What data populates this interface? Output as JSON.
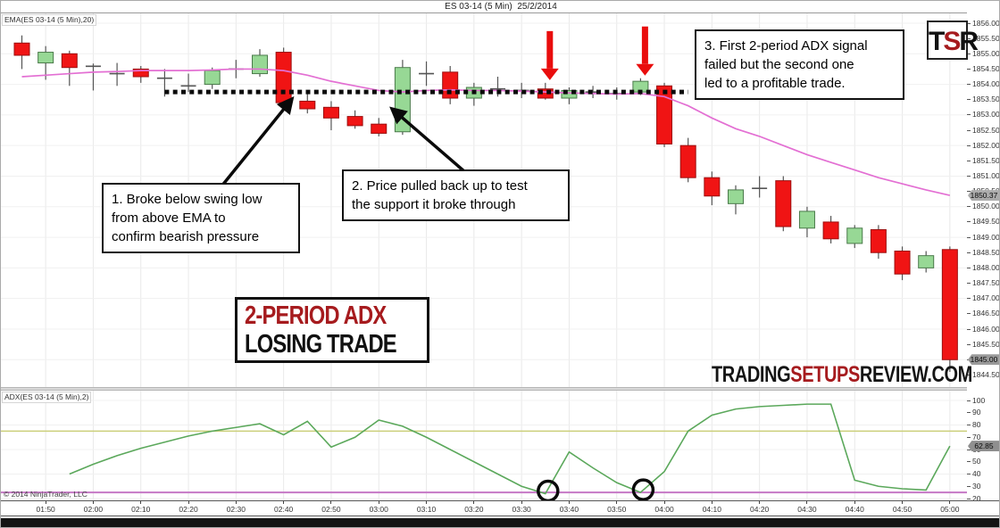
{
  "title": "ES 03-14 (5 Min)  25/2/2014",
  "copyright": "© 2014 NinjaTrader, LLC",
  "logo": {
    "t": "T",
    "s": "S",
    "r": "R"
  },
  "watermark": {
    "left": "TRADING",
    "mid": "SETUPS",
    "right": "REVIEW.COM"
  },
  "callout": {
    "line1": "2-PERIOD ADX",
    "line2": "LOSING TRADE"
  },
  "annotations": [
    {
      "text": "1. Broke below swing low\nfrom above EMA to\nconfirm bearish pressure"
    },
    {
      "text": "2. Price pulled  back up to test\nthe support it broke through"
    },
    {
      "text": "3. First 2-period ADX signal\nfailed but the second one\nled to a profitable trade."
    }
  ],
  "main_panel": {
    "indicator_label": "EMA(ES 03-14 (5 Min),20)",
    "ema_value_tag": "1850.37",
    "last_price_tag": "1845.00",
    "price_ticks": [
      "1856.00",
      "1855.50",
      "1855.00",
      "1854.50",
      "1854.00",
      "1853.50",
      "1853.00",
      "1852.50",
      "1852.00",
      "1851.50",
      "1851.00",
      "1850.50",
      "1850.00",
      "1849.50",
      "1849.00",
      "1848.50",
      "1848.00",
      "1847.50",
      "1847.00",
      "1846.50",
      "1846.00",
      "1845.50",
      "1845.00",
      "1844.50"
    ]
  },
  "adx_panel": {
    "indicator_label": "ADX(ES 03-14 (5 Min),2)",
    "value_tag": "62.85",
    "ticks": [
      "100",
      "90",
      "80",
      "70",
      "60",
      "50",
      "40",
      "30",
      "20"
    ]
  },
  "time_axis": [
    "01:50",
    "02:00",
    "02:10",
    "02:20",
    "02:30",
    "02:40",
    "02:50",
    "03:00",
    "03:10",
    "03:20",
    "03:30",
    "03:40",
    "03:50",
    "04:00",
    "04:10",
    "04:20",
    "04:30",
    "04:40",
    "04:50",
    "05:00"
  ],
  "chart_data": [
    {
      "type": "candlestick",
      "title": "ES 03-14 (5 Min)  25/2/2014",
      "x_times": [
        "01:45",
        "01:50",
        "01:55",
        "02:00",
        "02:05",
        "02:10",
        "02:15",
        "02:20",
        "02:25",
        "02:30",
        "02:35",
        "02:40",
        "02:45",
        "02:50",
        "02:55",
        "03:00",
        "03:05",
        "03:10",
        "03:15",
        "03:20",
        "03:25",
        "03:30",
        "03:35",
        "03:40",
        "03:45",
        "03:50",
        "03:55",
        "04:00",
        "04:05",
        "04:10",
        "04:15",
        "04:20",
        "04:25",
        "04:30",
        "04:35",
        "04:40",
        "04:45",
        "04:50",
        "04:55",
        "05:00"
      ],
      "ohlc": [
        [
          1855.35,
          1855.6,
          1854.5,
          1854.95
        ],
        [
          1854.7,
          1855.25,
          1854.15,
          1855.05
        ],
        [
          1855.0,
          1855.1,
          1853.95,
          1854.55
        ],
        [
          1854.6,
          1854.68,
          1853.8,
          1854.58
        ],
        [
          1854.35,
          1854.7,
          1853.95,
          1854.35
        ],
        [
          1854.5,
          1854.6,
          1854.05,
          1854.25
        ],
        [
          1854.2,
          1854.5,
          1853.6,
          1854.2
        ],
        [
          1853.95,
          1854.35,
          1853.75,
          1853.95
        ],
        [
          1854.0,
          1854.55,
          1853.85,
          1854.45
        ],
        [
          1854.5,
          1854.8,
          1854.2,
          1854.5
        ],
        [
          1854.35,
          1855.15,
          1854.25,
          1854.95
        ],
        [
          1855.05,
          1855.2,
          1853.3,
          1853.4
        ],
        [
          1853.45,
          1853.7,
          1853.05,
          1853.2
        ],
        [
          1853.25,
          1853.45,
          1852.5,
          1852.9
        ],
        [
          1852.95,
          1853.15,
          1852.55,
          1852.65
        ],
        [
          1852.7,
          1852.9,
          1852.3,
          1852.4
        ],
        [
          1852.45,
          1854.8,
          1852.35,
          1854.55
        ],
        [
          1854.35,
          1854.75,
          1853.95,
          1854.35
        ],
        [
          1854.4,
          1854.6,
          1853.35,
          1853.55
        ],
        [
          1853.55,
          1854.05,
          1853.3,
          1853.9
        ],
        [
          1853.85,
          1854.25,
          1853.6,
          1853.85
        ],
        [
          1853.8,
          1854.05,
          1853.55,
          1853.8
        ],
        [
          1853.85,
          1854.05,
          1853.5,
          1853.55
        ],
        [
          1853.55,
          1853.9,
          1853.35,
          1853.8
        ],
        [
          1853.75,
          1853.95,
          1853.55,
          1853.75
        ],
        [
          1853.7,
          1853.9,
          1853.5,
          1853.7
        ],
        [
          1853.75,
          1854.2,
          1853.65,
          1854.1
        ],
        [
          1853.95,
          1854.05,
          1851.95,
          1852.05
        ],
        [
          1852.0,
          1852.25,
          1850.8,
          1850.95
        ],
        [
          1850.95,
          1851.15,
          1850.05,
          1850.35
        ],
        [
          1850.1,
          1850.7,
          1849.75,
          1850.55
        ],
        [
          1850.6,
          1851.0,
          1850.3,
          1850.6
        ],
        [
          1850.85,
          1851.0,
          1849.2,
          1849.35
        ],
        [
          1849.3,
          1850.0,
          1849.0,
          1849.85
        ],
        [
          1849.5,
          1849.7,
          1848.8,
          1848.95
        ],
        [
          1848.8,
          1849.4,
          1848.65,
          1849.3
        ],
        [
          1849.25,
          1849.4,
          1848.3,
          1848.5
        ],
        [
          1848.55,
          1848.7,
          1847.6,
          1847.8
        ],
        [
          1848.0,
          1848.55,
          1847.85,
          1848.4
        ],
        [
          1848.6,
          1848.7,
          1844.6,
          1845.0
        ]
      ],
      "ema20": [
        1854.25,
        1854.3,
        1854.35,
        1854.4,
        1854.42,
        1854.45,
        1854.45,
        1854.45,
        1854.47,
        1854.5,
        1854.5,
        1854.45,
        1854.3,
        1854.1,
        1853.95,
        1853.8,
        1853.75,
        1853.8,
        1853.82,
        1853.8,
        1853.8,
        1853.78,
        1853.75,
        1853.72,
        1853.7,
        1853.68,
        1853.7,
        1853.6,
        1853.3,
        1852.9,
        1852.55,
        1852.3,
        1852.0,
        1851.7,
        1851.45,
        1851.2,
        1850.95,
        1850.75,
        1850.55,
        1850.37
      ],
      "last_price": 1845.0,
      "ema_last": 1850.37,
      "support_level": 1853.75,
      "support_span_bars": [
        6,
        28
      ],
      "signal_arrow_bars": [
        22,
        26
      ],
      "ylim": [
        1844.1,
        1856.32
      ],
      "grid": true,
      "colors": {
        "up": "#97d895",
        "down": "#f01414",
        "ema": "#e36fd3",
        "signal_arrow": "#e90d0d"
      }
    },
    {
      "type": "line",
      "name": "ADX(2)",
      "values": [
        null,
        null,
        40,
        48,
        55,
        61,
        66,
        71,
        75,
        78,
        81,
        72,
        83,
        62,
        70,
        84,
        79,
        70,
        60,
        50,
        40,
        30,
        24,
        58,
        45,
        33,
        25,
        42,
        75,
        88,
        93,
        95,
        96,
        97,
        97,
        35,
        30,
        28,
        27,
        62.85
      ],
      "last_value": 62.85,
      "threshold_upper": 75,
      "threshold_lower": 25,
      "circle_bars": [
        22,
        26
      ],
      "ylim": [
        15,
        105
      ],
      "grid": true,
      "colors": {
        "line": "#5ba85b",
        "upper": "#cbcf7a",
        "lower": "#c678c6"
      }
    }
  ]
}
